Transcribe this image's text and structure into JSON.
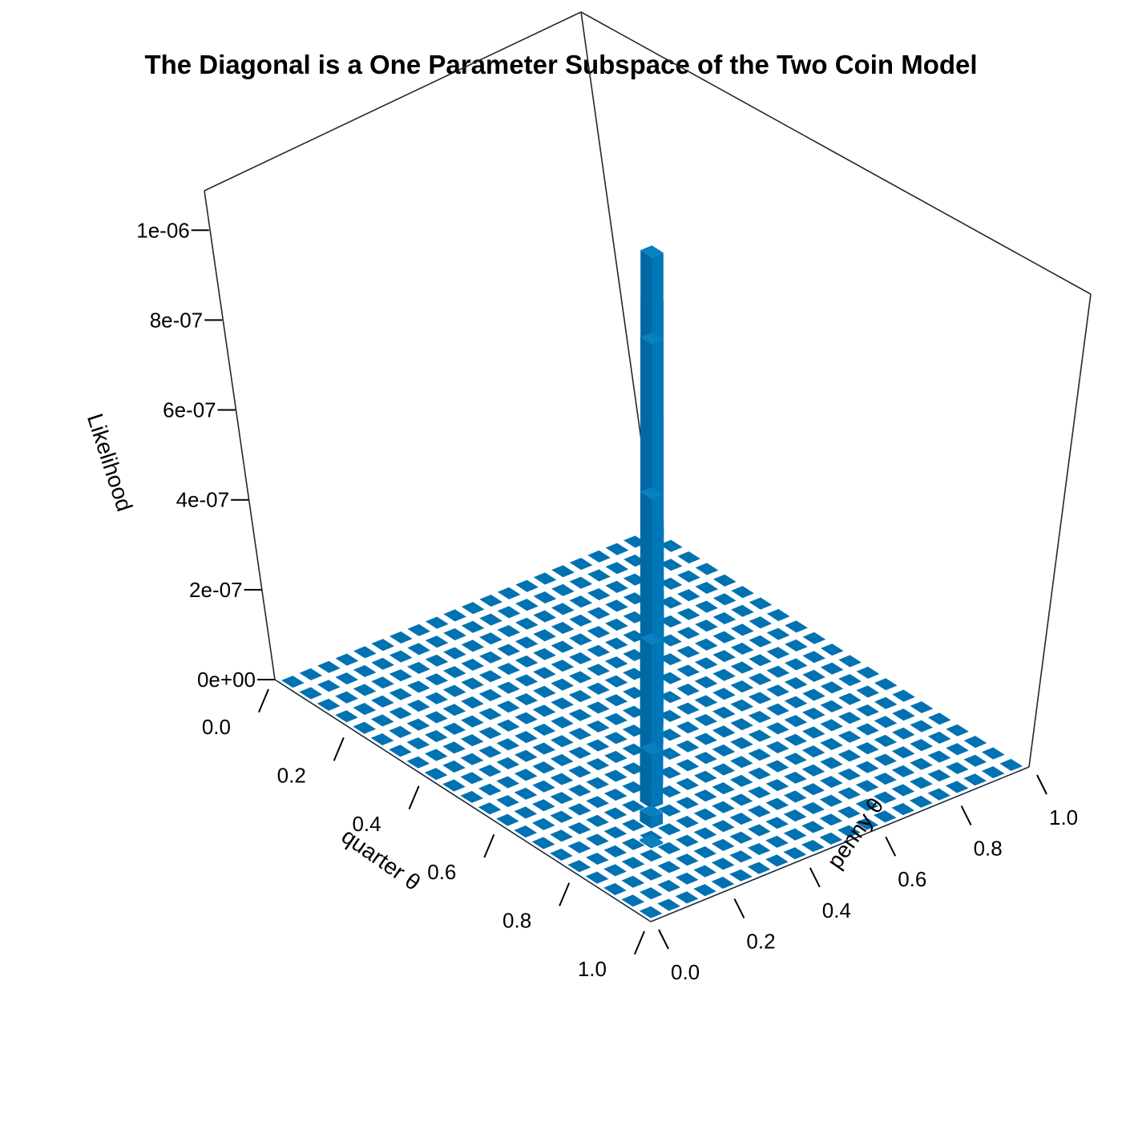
{
  "chart_data": {
    "type": "bar3d",
    "title": "The Diagonal is a One Parameter Subspace of the Two Coin Model",
    "zlabel": "Likelihood",
    "xlabel": "quarter θ",
    "ylabel": "penny θ",
    "x_ticks": [
      "0.0",
      "0.2",
      "0.4",
      "0.6",
      "0.8",
      "1.0"
    ],
    "y_ticks": [
      "0.0",
      "0.2",
      "0.4",
      "0.6",
      "0.8",
      "1.0"
    ],
    "z_ticks": [
      "0e+00",
      "2e-07",
      "4e-07",
      "6e-07",
      "8e-07",
      "1e-06"
    ],
    "z_tick_values": [
      0,
      2e-07,
      4e-07,
      6e-07,
      8e-07,
      1e-06
    ],
    "zlim": [
      0,
      1.07e-06
    ],
    "grid": {
      "n": 21,
      "theta_min": 0,
      "theta_max": 1
    },
    "bar_color": "#0072b2",
    "diagonal_bars": {
      "quarter_theta": [
        0.25,
        0.3,
        0.35,
        0.4,
        0.45,
        0.5,
        0.55,
        0.6,
        0.65,
        0.7,
        0.75,
        0.8
      ],
      "penny_theta": [
        0.25,
        0.3,
        0.35,
        0.4,
        0.45,
        0.5,
        0.55,
        0.6,
        0.65,
        0.7,
        0.75,
        0.8
      ],
      "likelihood": [
        2e-08,
        1.2e-07,
        3.2e-07,
        6e-07,
        9e-07,
        1.05e-06,
        9e-07,
        6e-07,
        3.2e-07,
        1.2e-07,
        2.5e-08,
        4e-09
      ]
    }
  }
}
